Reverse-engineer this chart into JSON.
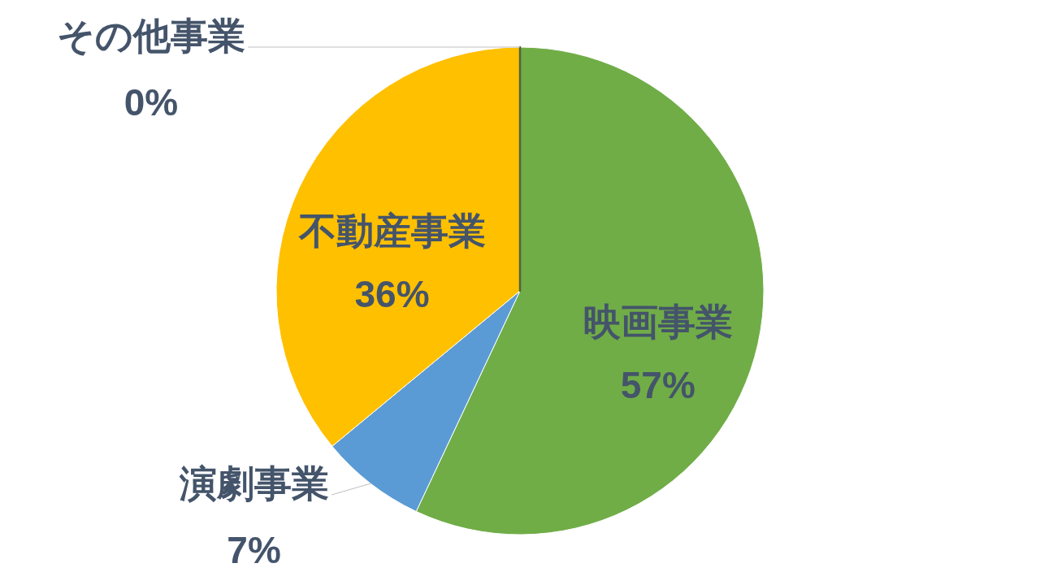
{
  "chart_data": {
    "type": "pie",
    "categories": [
      "映画事業",
      "演劇事業",
      "不動産事業",
      "その他事業"
    ],
    "values": [
      57,
      7,
      36,
      0
    ],
    "colors": [
      "#70ad47",
      "#5b9bd5",
      "#ffc000",
      "#4f6343"
    ],
    "value_labels": [
      "57%",
      "7%",
      "36%",
      "0%"
    ]
  }
}
